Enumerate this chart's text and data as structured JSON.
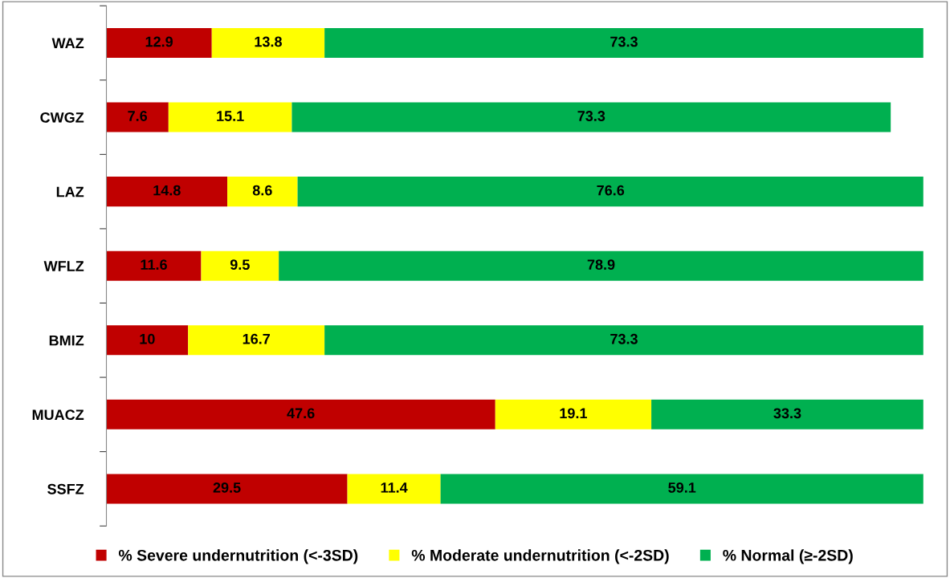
{
  "chart_data": {
    "type": "bar",
    "orientation": "horizontal",
    "stacked": true,
    "data_labels": true,
    "tick_labels": "y",
    "grid": false,
    "legend": "bottom",
    "categories": [
      "WAZ",
      "CWGZ",
      "LAZ",
      "WFLZ",
      "BMIZ",
      "MUACZ",
      "SSFZ"
    ],
    "series": [
      {
        "name": "% Severe undernutrition (<-3SD)",
        "color": "#c00000",
        "values": [
          12.9,
          7.6,
          14.8,
          11.6,
          10,
          47.6,
          29.5
        ]
      },
      {
        "name": "% Moderate undernutrition (<-2SD)",
        "color": "#ffff00",
        "values": [
          13.8,
          15.1,
          8.6,
          9.5,
          16.7,
          19.1,
          11.4
        ]
      },
      {
        "name": "% Normal (≥-2SD)",
        "color": "#00b050",
        "values": [
          73.3,
          73.3,
          76.6,
          78.9,
          73.3,
          33.3,
          59.1
        ]
      }
    ]
  }
}
